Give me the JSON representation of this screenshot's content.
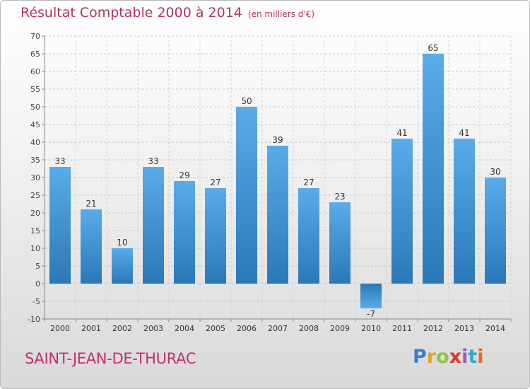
{
  "title": "Résultat Comptable 2000 à 2014",
  "subtitle": "(en milliers d'€)",
  "commune": "SAINT-JEAN-DE-THURAC",
  "logo": {
    "text": "Proxiti",
    "letters": [
      "P",
      "r",
      "o",
      "x",
      "i",
      "t",
      "i"
    ]
  },
  "chart_data": {
    "type": "bar",
    "title": "Résultat Comptable 2000 à 2014",
    "subtitle": "(en milliers d'€)",
    "xlabel": "",
    "ylabel": "",
    "categories": [
      "2000",
      "2001",
      "2002",
      "2003",
      "2004",
      "2005",
      "2006",
      "2007",
      "2008",
      "2009",
      "2010",
      "2011",
      "2012",
      "2013",
      "2014"
    ],
    "values": [
      33,
      21,
      10,
      33,
      29,
      27,
      50,
      39,
      27,
      23,
      -7,
      41,
      65,
      41,
      30
    ],
    "ylim": [
      -10,
      70
    ],
    "yticks": [
      -10,
      -5,
      0,
      5,
      10,
      15,
      20,
      25,
      30,
      35,
      40,
      45,
      50,
      55,
      60,
      65,
      70
    ],
    "grid": true,
    "bar_color": "#3d8fd1"
  }
}
